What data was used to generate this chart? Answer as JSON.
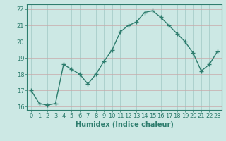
{
  "x": [
    0,
    1,
    2,
    3,
    4,
    5,
    6,
    7,
    8,
    9,
    10,
    11,
    12,
    13,
    14,
    15,
    16,
    17,
    18,
    19,
    20,
    21,
    22,
    23
  ],
  "y": [
    17.0,
    16.2,
    16.1,
    16.2,
    18.6,
    18.3,
    18.0,
    17.4,
    18.0,
    18.8,
    19.5,
    20.6,
    21.0,
    21.2,
    21.8,
    21.9,
    21.5,
    21.0,
    20.5,
    20.0,
    19.3,
    18.2,
    18.6,
    19.4
  ],
  "line_color": "#2e7d6e",
  "marker": "+",
  "markersize": 4.0,
  "markeredgewidth": 1.0,
  "linewidth": 1.0,
  "bg_color": "#cce8e4",
  "grid_color_h": "#c8a8a8",
  "grid_color_v": "#a0c8c4",
  "xlabel": "Humidex (Indice chaleur)",
  "ylabel": "",
  "title": "",
  "xlim": [
    -0.5,
    23.5
  ],
  "ylim": [
    15.8,
    22.3
  ],
  "yticks": [
    16,
    17,
    18,
    19,
    20,
    21,
    22
  ],
  "xticks": [
    0,
    1,
    2,
    3,
    4,
    5,
    6,
    7,
    8,
    9,
    10,
    11,
    12,
    13,
    14,
    15,
    16,
    17,
    18,
    19,
    20,
    21,
    22,
    23
  ],
  "xlabel_fontsize": 7.0,
  "tick_fontsize": 6.0,
  "fig_width": 3.2,
  "fig_height": 2.0,
  "dpi": 100
}
